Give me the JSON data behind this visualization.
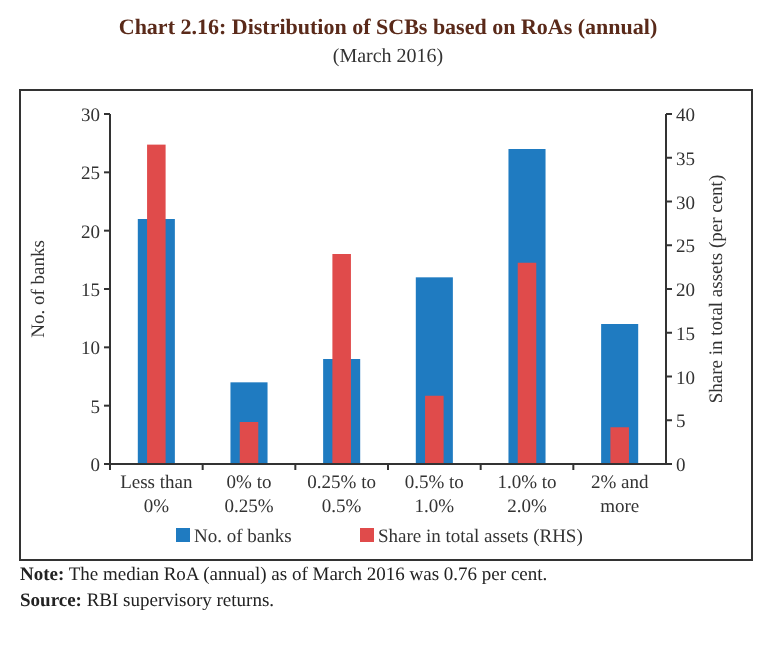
{
  "chart_data": {
    "type": "bar",
    "title": "Chart 2.16: Distribution of SCBs based on RoAs (annual)",
    "subtitle": "(March 2016)",
    "categories": [
      "Less than 0%",
      "0% to 0.25%",
      "0.25% to 0.5%",
      "0.5% to 1.0%",
      "1.0% to 2.0%",
      "2% and more"
    ],
    "series": [
      {
        "name": "No. of banks",
        "color": "#1f7bc1",
        "values": [
          21,
          7,
          9,
          16,
          27,
          12
        ]
      },
      {
        "name": "Share in total assets (RHS)",
        "color": "#e04b4b",
        "axis": "y2",
        "values": [
          36.5,
          4.8,
          24,
          7.8,
          23,
          4.2
        ]
      }
    ],
    "ylabel": "No. of banks",
    "y2label": "Share in total assets (per cent)",
    "ylim": [
      0,
      30
    ],
    "yticks": [
      0,
      5,
      10,
      15,
      20,
      25,
      30
    ],
    "y2lim": [
      0,
      40
    ],
    "y2ticks": [
      0,
      5,
      10,
      15,
      20,
      25,
      30,
      35,
      40
    ],
    "legend": "bottom",
    "grid": false,
    "annotations": [
      "Note: The median RoA (annual) as of March 2016 was 0.76 per cent.",
      "Source: RBI supervisory returns."
    ]
  }
}
